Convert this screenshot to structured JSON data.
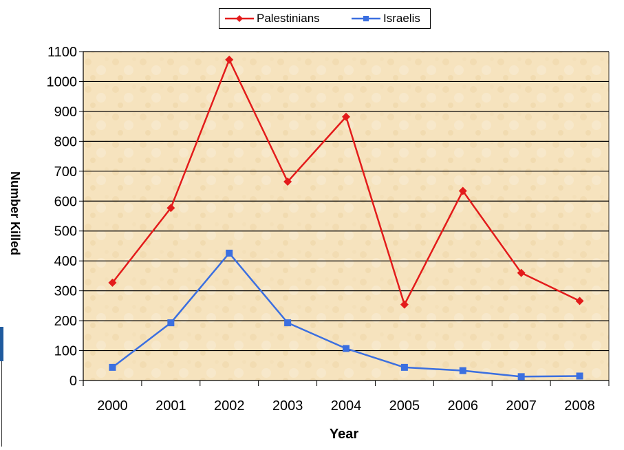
{
  "chart_data": {
    "type": "line",
    "xlabel": "Year",
    "ylabel": "Number Killed",
    "categories": [
      "2000",
      "2001",
      "2002",
      "2003",
      "2004",
      "2005",
      "2006",
      "2007",
      "2008"
    ],
    "y_ticks": [
      "0",
      "100",
      "200",
      "300",
      "400",
      "500",
      "600",
      "700",
      "800",
      "900",
      "1000",
      "1100"
    ],
    "ylim": [
      0,
      1100
    ],
    "grid": true,
    "legend_position": "top",
    "series": [
      {
        "name": "Palestinians",
        "color": "#e31b1b",
        "marker": "diamond",
        "values": [
          327,
          577,
          1073,
          665,
          882,
          254,
          634,
          360,
          266
        ]
      },
      {
        "name": "Israelis",
        "color": "#3b6fe0",
        "marker": "square",
        "values": [
          44,
          193,
          426,
          193,
          107,
          44,
          33,
          13,
          15
        ]
      }
    ]
  }
}
